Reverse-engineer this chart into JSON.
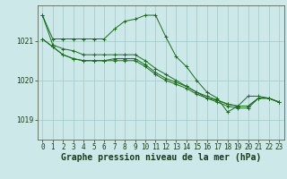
{
  "background_color": "#cce8e8",
  "grid_color": "#aacccc",
  "line_color": "#1a6b1a",
  "xlabel": "Graphe pression niveau de la mer (hPa)",
  "xlabel_fontsize": 7,
  "tick_fontsize": 5.5,
  "ylim": [
    1018.5,
    1021.9
  ],
  "xlim": [
    -0.5,
    23.5
  ],
  "yticks": [
    1019,
    1020,
    1021
  ],
  "xticks": [
    0,
    1,
    2,
    3,
    4,
    5,
    6,
    7,
    8,
    9,
    10,
    11,
    12,
    13,
    14,
    15,
    16,
    17,
    18,
    19,
    20,
    21,
    22,
    23
  ],
  "series": [
    [
      1021.65,
      1021.05,
      1021.05,
      1021.05,
      1021.05,
      1021.05,
      1021.05,
      1021.3,
      1021.5,
      1021.55,
      1021.65,
      1021.65,
      1021.1,
      1020.6,
      1020.35,
      1020.0,
      1019.7,
      1019.55,
      1019.2,
      1019.35,
      1019.6,
      1019.6,
      1019.55,
      1019.45
    ],
    [
      1021.65,
      1020.9,
      1020.8,
      1020.75,
      1020.65,
      1020.65,
      1020.65,
      1020.65,
      1020.65,
      1020.65,
      1020.5,
      1020.3,
      1020.15,
      1020.0,
      1019.85,
      1019.7,
      1019.55,
      1019.5,
      1019.4,
      1019.35,
      1019.35,
      1019.55,
      1019.55,
      1019.45
    ],
    [
      1021.05,
      1020.85,
      1020.65,
      1020.55,
      1020.5,
      1020.5,
      1020.5,
      1020.5,
      1020.5,
      1020.5,
      1020.35,
      1020.15,
      1020.0,
      1019.9,
      1019.8,
      1019.65,
      1019.55,
      1019.45,
      1019.35,
      1019.3,
      1019.3,
      1019.55,
      1019.55,
      1019.45
    ],
    [
      1021.05,
      1020.85,
      1020.65,
      1020.55,
      1020.5,
      1020.5,
      1020.5,
      1020.55,
      1020.55,
      1020.55,
      1020.4,
      1020.2,
      1020.05,
      1019.95,
      1019.85,
      1019.7,
      1019.6,
      1019.5,
      1019.4,
      1019.35,
      1019.35,
      1019.55,
      1019.55,
      1019.45
    ]
  ]
}
